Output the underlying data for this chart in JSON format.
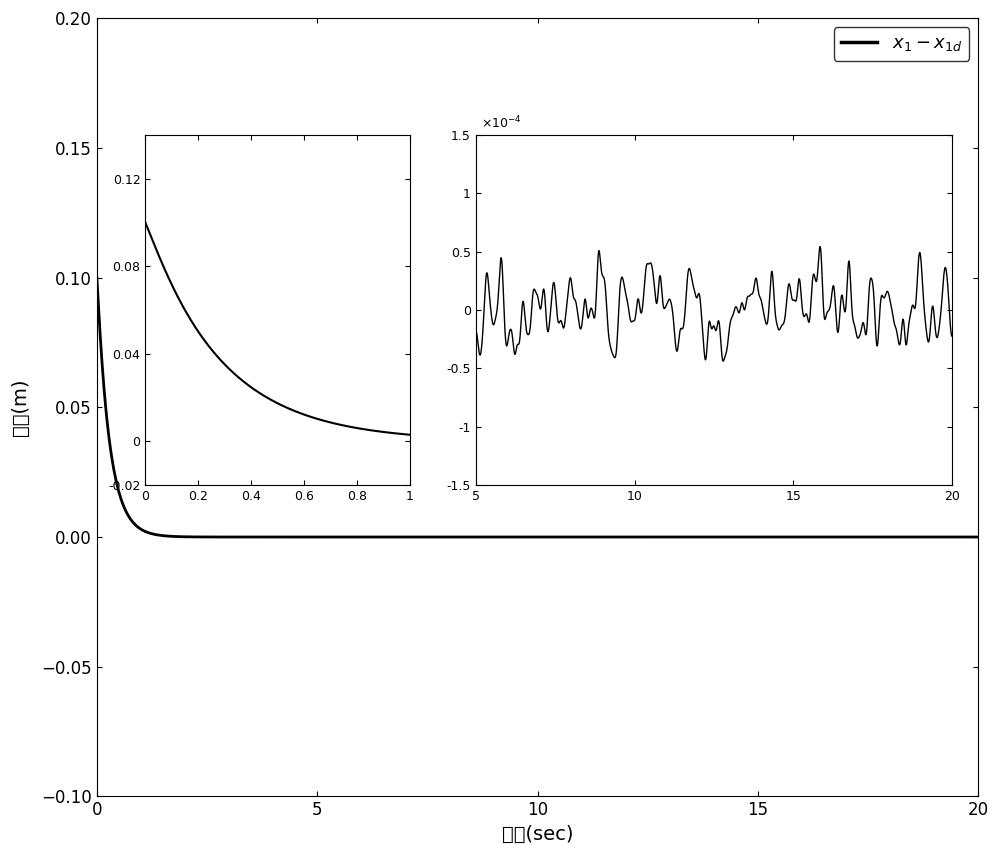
{
  "title": "",
  "xlabel": "时间(sec)",
  "ylabel": "误差(m)",
  "xlim": [
    0,
    20
  ],
  "ylim": [
    -0.1,
    0.2
  ],
  "yticks": [
    -0.1,
    -0.05,
    0,
    0.05,
    0.1,
    0.15,
    0.2
  ],
  "xticks": [
    0,
    5,
    10,
    15,
    20
  ],
  "line_color": "#000000",
  "line_width": 2.0,
  "bg_color": "#ffffff",
  "inset1": {
    "xlim": [
      0,
      1
    ],
    "ylim": [
      -0.02,
      0.14
    ],
    "yticks_vals": [
      -0.02,
      0.0,
      0.04,
      0.08,
      0.12
    ],
    "yticks_labels": [
      "-0.02",
      "0",
      "0.04",
      "0.08",
      "0.12"
    ],
    "xticks": [
      0.0,
      0.2,
      0.4,
      0.6,
      0.8,
      1.0
    ]
  },
  "inset2": {
    "xlim": [
      5,
      20
    ],
    "ylim_scale": 1.5,
    "xticks": [
      5,
      10,
      15,
      20
    ],
    "yticks_labels": [
      "-1.5",
      "-1",
      "-0.5",
      "0",
      "0.5",
      "1",
      "1.5"
    ]
  }
}
